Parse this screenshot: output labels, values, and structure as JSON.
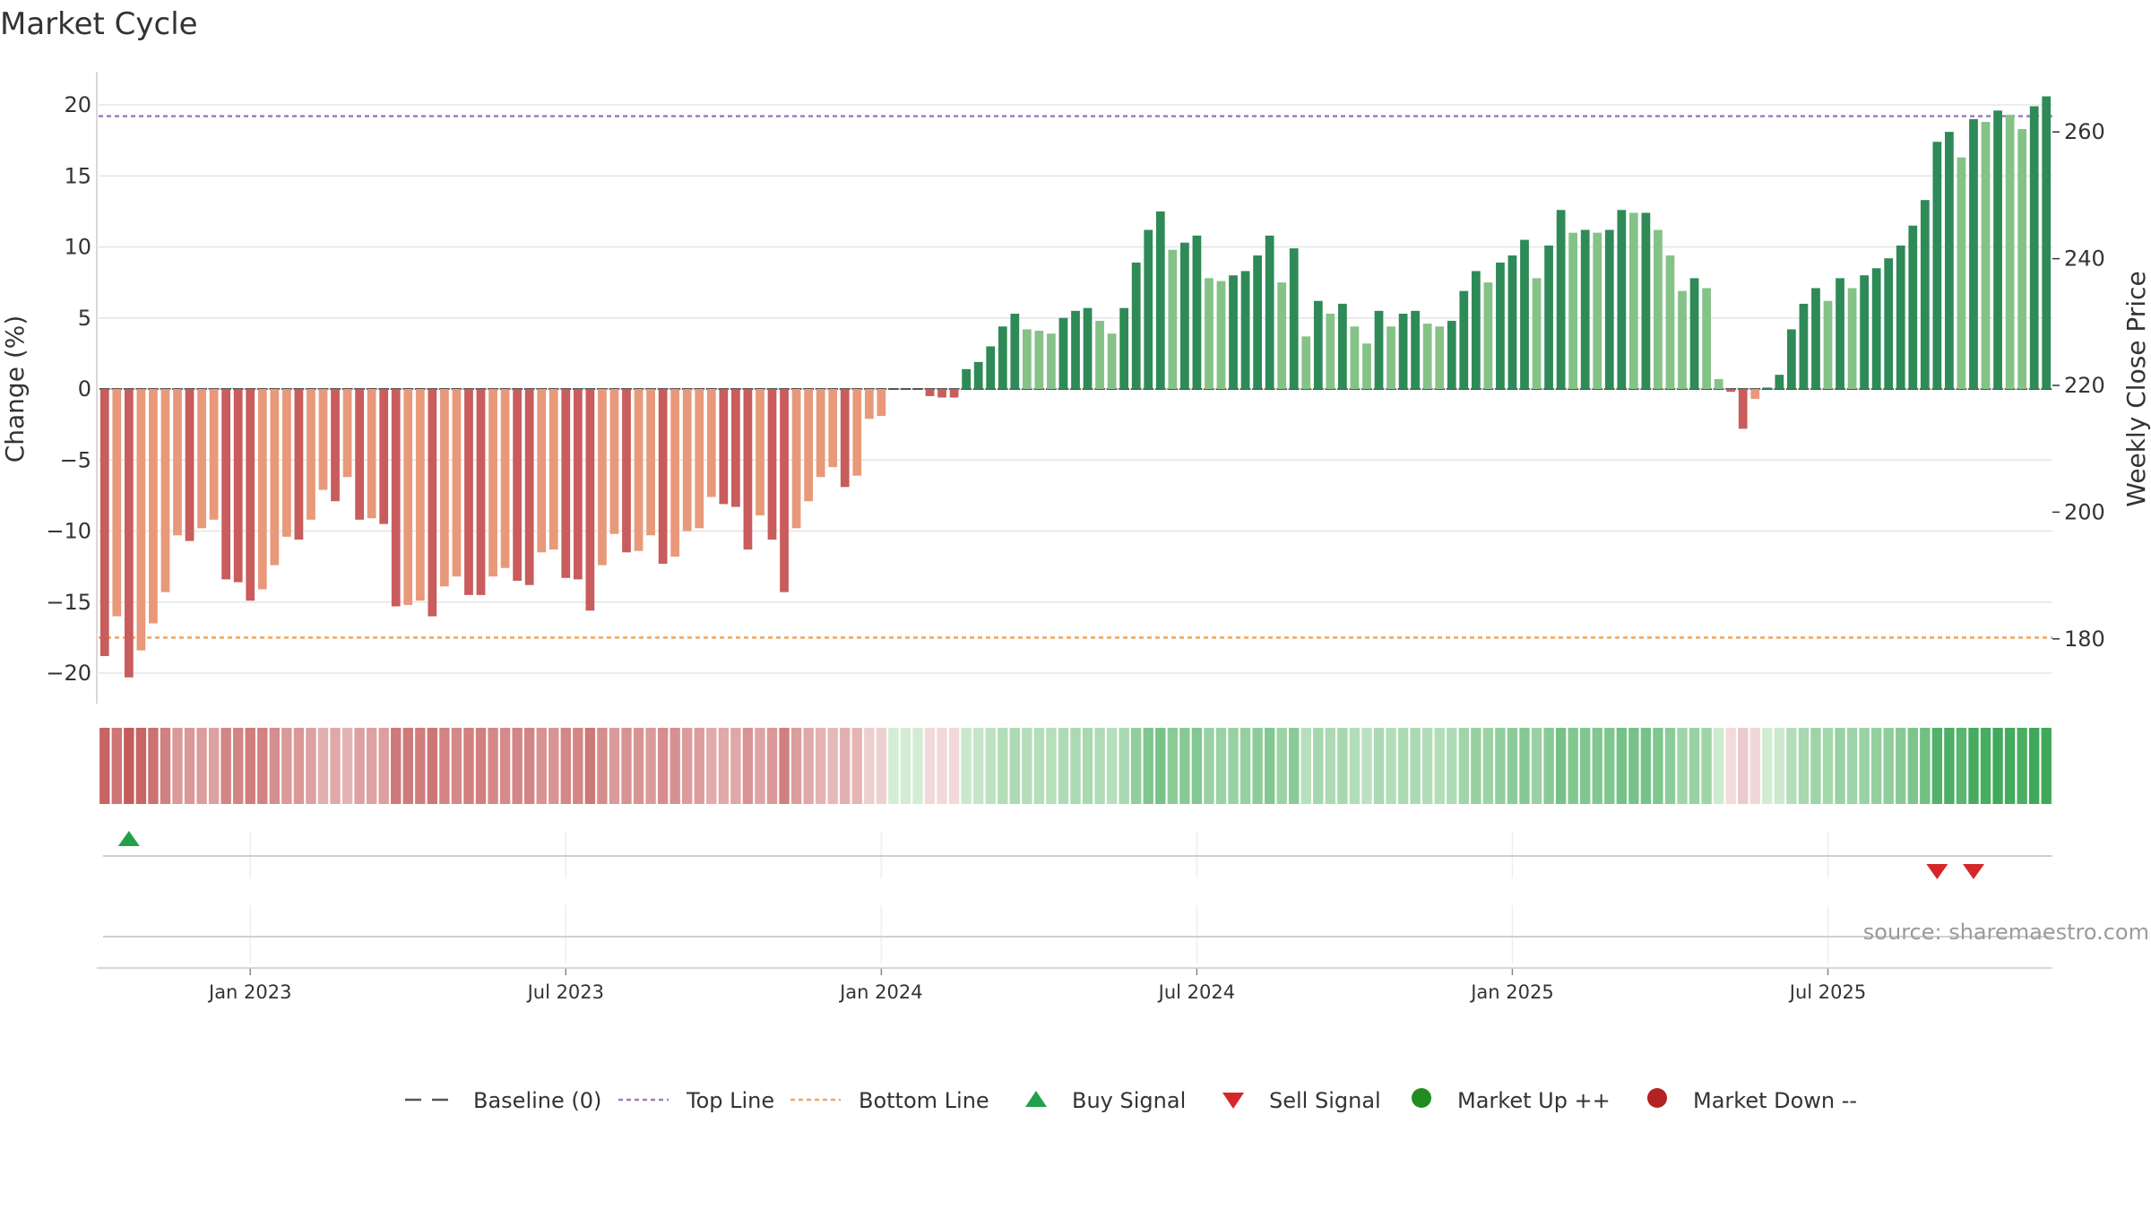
{
  "chart_data": {
    "type": "bar",
    "title": "Market Cycle",
    "y_left_label": "Change (%)",
    "y_right_label": "Weekly Close Price",
    "y_left_ticks": [
      20,
      15,
      10,
      5,
      0,
      -5,
      -10,
      -15,
      -20
    ],
    "y_left_tick_labels": [
      "20",
      "15",
      "10",
      "5",
      "0",
      "−5",
      "−10",
      "−15",
      "−20"
    ],
    "y_left_range": [
      -22,
      22
    ],
    "y_right_ticks": [
      180,
      200,
      220,
      240,
      260
    ],
    "y_right_tick_labels": [
      "180",
      "200",
      "220",
      "240",
      "260"
    ],
    "top_line": 19.2,
    "bottom_line": -17.5,
    "x_start": "2022-10-10",
    "x_tick_labels": [
      "Jan 2023",
      "Jul 2023",
      "Jan 2024",
      "Jul 2024",
      "Jan 2025",
      "Jul 2025"
    ],
    "x_tick_week_index": [
      12,
      38,
      64,
      90,
      116,
      142
    ],
    "series": [
      {
        "name": "Change",
        "values": [
          -18.8,
          -16.0,
          -20.3,
          -18.4,
          -16.5,
          -14.3,
          -10.3,
          -10.7,
          -9.8,
          -9.2,
          -13.4,
          -13.6,
          -14.9,
          -14.1,
          -12.4,
          -10.4,
          -10.6,
          -9.2,
          -7.1,
          -7.9,
          -6.2,
          -9.2,
          -9.1,
          -9.5,
          -15.3,
          -15.2,
          -14.9,
          -16.0,
          -13.9,
          -13.2,
          -14.5,
          -14.5,
          -13.2,
          -12.6,
          -13.5,
          -13.8,
          -11.5,
          -11.3,
          -13.3,
          -13.4,
          -15.6,
          -12.4,
          -10.2,
          -11.5,
          -11.4,
          -10.3,
          -12.3,
          -11.8,
          -10.0,
          -9.8,
          -7.6,
          -8.1,
          -8.3,
          -11.3,
          -8.9,
          -10.6,
          -14.3,
          -9.8,
          -7.9,
          -6.2,
          -5.5,
          -6.9,
          -6.1,
          -2.1,
          -1.9,
          0,
          0,
          0,
          -0.5,
          -0.6,
          -0.6,
          1.4,
          1.9,
          3.0,
          4.4,
          5.3,
          4.2,
          4.1,
          3.9,
          5.0,
          5.5,
          5.7,
          4.8,
          3.9,
          5.7,
          8.9,
          11.2,
          12.5,
          9.8,
          10.3,
          10.8,
          7.8,
          7.6,
          8.0,
          8.3,
          9.4,
          10.8,
          7.5,
          9.9,
          3.7,
          6.2,
          5.3,
          6.0,
          4.4,
          3.2,
          5.5,
          4.4,
          5.3,
          5.5,
          4.6,
          4.4,
          4.8,
          6.9,
          8.3,
          7.5,
          8.9,
          9.4,
          10.5,
          7.8,
          10.1,
          12.6,
          11.0,
          11.2,
          11.0,
          11.2,
          12.6,
          12.4,
          12.4,
          11.2,
          9.4,
          6.9,
          7.8,
          7.1,
          0.7,
          -0.2,
          -2.8,
          -0.7,
          0.1,
          1.0,
          4.2,
          6.0,
          7.1,
          6.2,
          7.8,
          7.1,
          8.0,
          8.5,
          9.2,
          10.1,
          11.5,
          13.3,
          17.4,
          18.1,
          16.3,
          19.0,
          18.8,
          19.6,
          19.3,
          18.3,
          19.9,
          20.6
        ]
      }
    ],
    "legend": {
      "placement": "bottom-center",
      "entries": [
        "Baseline (0)",
        "Top Line",
        "Bottom Line",
        "Buy Signal",
        "Sell Signal",
        "Market Up ++",
        "Market Down --"
      ]
    },
    "buy_signal_weeks": [
      2
    ],
    "sell_signal_weeks": [
      151,
      154
    ],
    "source_text": "source: sharemaestro.com"
  },
  "colors": {
    "strong_down": "#c95c5c",
    "weak_down": "#e8997a",
    "strong_up": "#2e8a57",
    "weak_up": "#85c287",
    "top_line": "#9e7cc1",
    "bottom_line": "#f0a35e",
    "buy": "#22a04b",
    "sell": "#d62728",
    "market_up_dot": "#228b22",
    "market_down_dot": "#b22222",
    "grid": "#e5e5e5",
    "baseline": "#555555"
  }
}
